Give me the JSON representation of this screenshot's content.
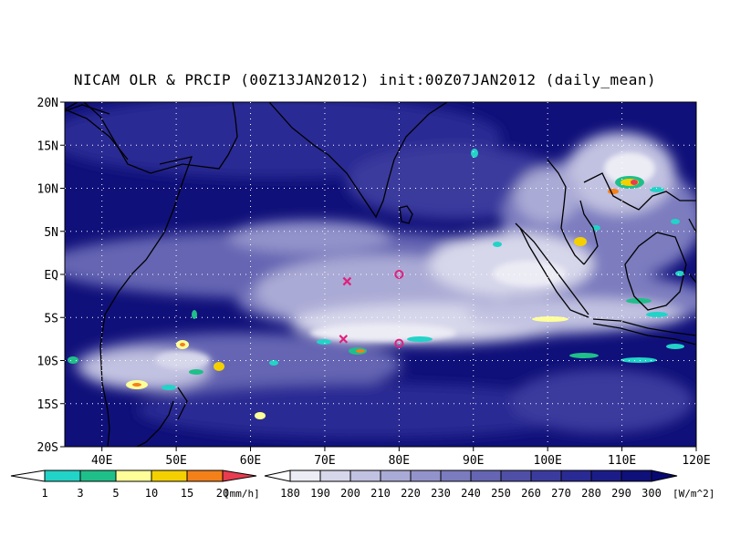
{
  "title": "NICAM OLR & PRCIP (00Z13JAN2012) init:00Z07JAN2012 (daily_mean)",
  "map": {
    "lat_range": [
      -20,
      20
    ],
    "lon_range": [
      35,
      120
    ],
    "lat_ticks": [
      {
        "value": 20,
        "label": "20N"
      },
      {
        "value": 15,
        "label": "15N"
      },
      {
        "value": 10,
        "label": "10N"
      },
      {
        "value": 5,
        "label": "5N"
      },
      {
        "value": 0,
        "label": "EQ"
      },
      {
        "value": -5,
        "label": "5S"
      },
      {
        "value": -10,
        "label": "10S"
      },
      {
        "value": -15,
        "label": "15S"
      },
      {
        "value": -20,
        "label": "20S"
      }
    ],
    "lon_ticks": [
      {
        "value": 40,
        "label": "40E"
      },
      {
        "value": 50,
        "label": "50E"
      },
      {
        "value": 60,
        "label": "60E"
      },
      {
        "value": 70,
        "label": "70E"
      },
      {
        "value": 80,
        "label": "80E"
      },
      {
        "value": 90,
        "label": "90E"
      },
      {
        "value": 100,
        "label": "100E"
      },
      {
        "value": 110,
        "label": "110E"
      },
      {
        "value": 120,
        "label": "120E"
      }
    ],
    "grid": true,
    "markers": [
      {
        "type": "x",
        "lon": 73,
        "lat": -0.8,
        "color": "#e0207c"
      },
      {
        "type": "circle",
        "lon": 80,
        "lat": 0,
        "color": "#e0207c"
      },
      {
        "type": "x",
        "lon": 72.5,
        "lat": -7.5,
        "color": "#e0207c"
      },
      {
        "type": "circle",
        "lon": 80,
        "lat": -8,
        "color": "#e0207c"
      }
    ]
  },
  "precip_colorbar": {
    "labels": [
      "1",
      "3",
      "5",
      "10",
      "15",
      "20"
    ],
    "unit": "[mm/h]",
    "colors": [
      "#ffffff",
      "#22d3c7",
      "#1fbf8a",
      "#ffff99",
      "#f4d000",
      "#f4801a",
      "#e83c50"
    ]
  },
  "olr_colorbar": {
    "labels": [
      "180",
      "190",
      "200",
      "210",
      "220",
      "230",
      "240",
      "250",
      "260",
      "270",
      "280",
      "290",
      "300"
    ],
    "unit": "[W/m^2]",
    "colors": [
      "#ffffff",
      "#ececf5",
      "#d7d7eb",
      "#c1c1e1",
      "#aaaad6",
      "#9393cb",
      "#7b7bbf",
      "#6565b3",
      "#4f4fa8",
      "#3b3b9e",
      "#2a2a94",
      "#1c1c88",
      "#10107a",
      "#080874"
    ]
  }
}
